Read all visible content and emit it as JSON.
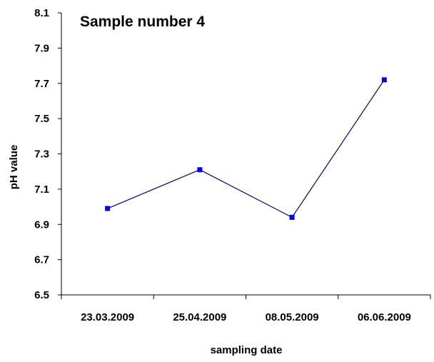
{
  "chart_data": {
    "type": "line",
    "title": "Sample number 4",
    "xlabel": "sampling date",
    "ylabel": "pH value",
    "categories": [
      "23.03.2009",
      "25.04.2009",
      "08.05.2009",
      "06.06.2009"
    ],
    "series": [
      {
        "values": [
          6.99,
          7.21,
          6.94,
          7.72
        ]
      }
    ],
    "ylim": [
      6.5,
      8.1
    ],
    "yticks": [
      "6.5",
      "6.7",
      "6.9",
      "7.1",
      "7.3",
      "7.5",
      "7.7",
      "7.9",
      "8.1"
    ],
    "grid": false,
    "legend": "none",
    "colors": {
      "line": "#000080",
      "marker": "#0000ff",
      "axis": "#000000"
    }
  }
}
